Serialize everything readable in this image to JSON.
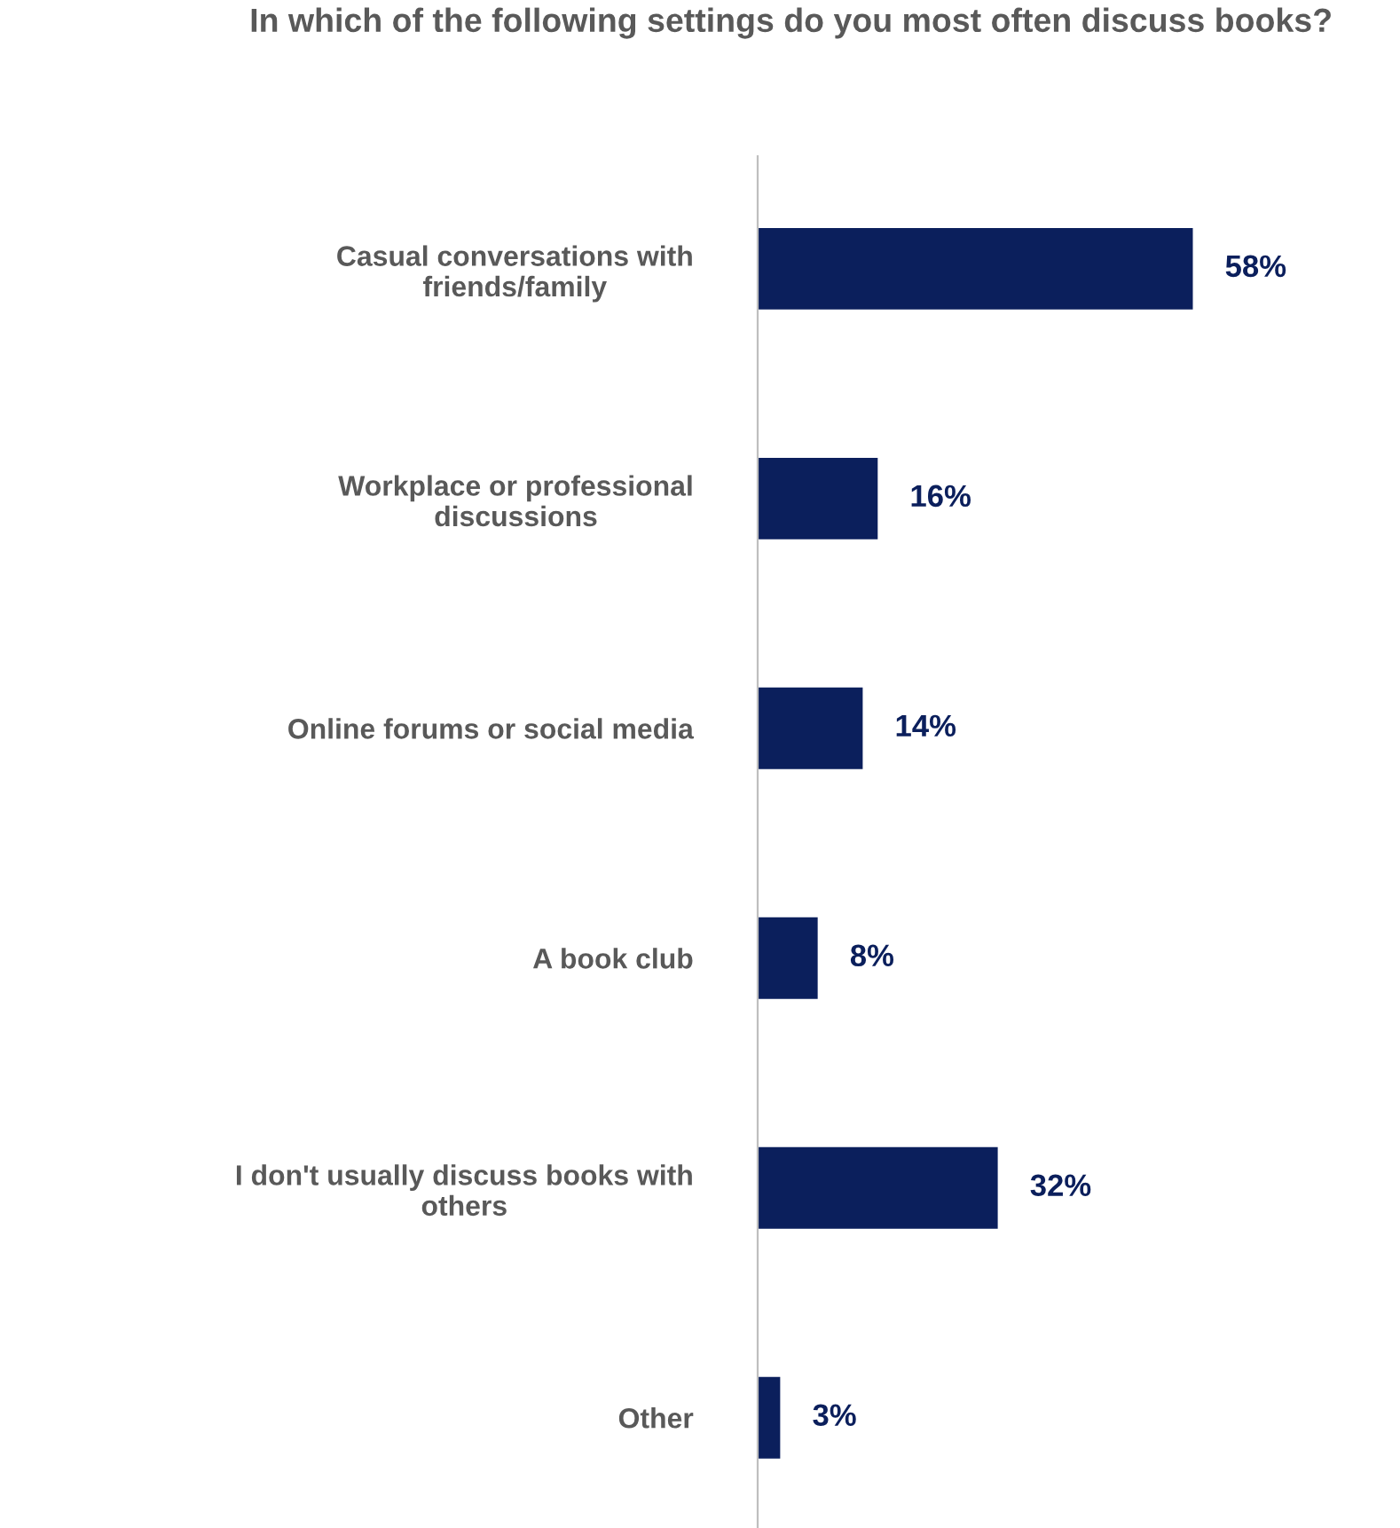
{
  "chart_data": {
    "type": "bar",
    "orientation": "horizontal",
    "title": "In which of the following settings do you most often discuss books?",
    "categories": [
      "Casual conversations with\nfriends/family",
      "Workplace or professional\ndiscussions",
      "Online forums or social media",
      "A book club",
      "I don't usually discuss books with\nothers",
      "Other"
    ],
    "values": [
      58,
      16,
      14,
      8,
      32,
      3
    ],
    "value_labels": [
      "58%",
      "16%",
      "14%",
      "8%",
      "32%",
      "3%"
    ],
    "color": "#0b1f5c",
    "grid": false,
    "tick_labels": "y"
  }
}
